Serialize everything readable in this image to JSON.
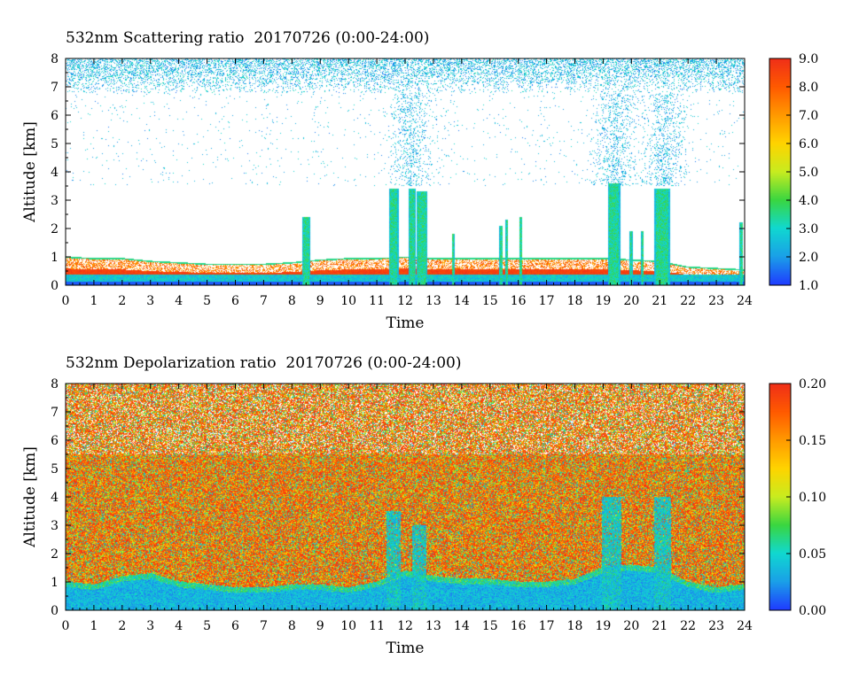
{
  "chart_data": [
    {
      "type": "heatmap",
      "title": "532nm Scattering ratio  20170726 (0:00-24:00)",
      "xlabel": "Time",
      "ylabel": "Altitude [km]",
      "xlim": [
        0,
        24
      ],
      "ylim": [
        0,
        8
      ],
      "x_ticks": [
        "0",
        "1",
        "2",
        "3",
        "4",
        "5",
        "6",
        "7",
        "8",
        "9",
        "10",
        "11",
        "12",
        "13",
        "14",
        "15",
        "16",
        "17",
        "18",
        "19",
        "20",
        "21",
        "22",
        "23",
        "24"
      ],
      "y_ticks": [
        "0",
        "1",
        "2",
        "3",
        "4",
        "5",
        "6",
        "7",
        "8"
      ],
      "colorbar": {
        "range": [
          1.0,
          9.0
        ],
        "tick_labels": [
          "1.0",
          "2.0",
          "3.0",
          "4.0",
          "5.0",
          "6.0",
          "7.0",
          "8.0",
          "9.0"
        ],
        "colors": [
          "#1f3cff",
          "#1aa0e8",
          "#10d8d0",
          "#3ad640",
          "#c8ec20",
          "#ffd400",
          "#ff9a00",
          "#ff5a00",
          "#f03018"
        ]
      },
      "features": {
        "surface_layer_top_km": 0.35,
        "boundary_layer_top_km": [
          0.95,
          0.9,
          0.9,
          0.8,
          0.75,
          0.7,
          0.7,
          0.7,
          0.75,
          0.85,
          0.9,
          0.9,
          0.95,
          0.9,
          0.9,
          0.9,
          0.9,
          0.9,
          0.9,
          0.9,
          0.85,
          0.8,
          0.6,
          0.55,
          0.5
        ],
        "cloud_columns": [
          {
            "time": 8.5,
            "top_km": 2.4,
            "width_h": 0.3
          },
          {
            "time": 11.6,
            "top_km": 3.4,
            "width_h": 0.35
          },
          {
            "time": 12.25,
            "top_km": 3.4,
            "width_h": 0.25
          },
          {
            "time": 12.6,
            "top_km": 3.3,
            "width_h": 0.4
          },
          {
            "time": 13.7,
            "top_km": 1.8,
            "width_h": 0.1
          },
          {
            "time": 15.4,
            "top_km": 2.1,
            "width_h": 0.12
          },
          {
            "time": 15.6,
            "top_km": 2.3,
            "width_h": 0.1
          },
          {
            "time": 16.1,
            "top_km": 2.4,
            "width_h": 0.1
          },
          {
            "time": 19.4,
            "top_km": 3.6,
            "width_h": 0.45
          },
          {
            "time": 20.0,
            "top_km": 1.9,
            "width_h": 0.1
          },
          {
            "time": 20.4,
            "top_km": 1.9,
            "width_h": 0.1
          },
          {
            "time": 21.1,
            "top_km": 3.4,
            "width_h": 0.55
          },
          {
            "time": 23.9,
            "top_km": 2.2,
            "width_h": 0.12
          }
        ],
        "high_level_noise_band_km": [
          6.8,
          8.0
        ]
      }
    },
    {
      "type": "heatmap",
      "title": "532nm Depolarization ratio  20170726 (0:00-24:00)",
      "xlabel": "Time",
      "ylabel": "Altitude [km]",
      "xlim": [
        0,
        24
      ],
      "ylim": [
        0,
        8
      ],
      "x_ticks": [
        "0",
        "1",
        "2",
        "3",
        "4",
        "5",
        "6",
        "7",
        "8",
        "9",
        "10",
        "11",
        "12",
        "13",
        "14",
        "15",
        "16",
        "17",
        "18",
        "19",
        "20",
        "21",
        "22",
        "23",
        "24"
      ],
      "y_ticks": [
        "0",
        "1",
        "2",
        "3",
        "4",
        "5",
        "6",
        "7",
        "8"
      ],
      "colorbar": {
        "range": [
          0.0,
          0.2
        ],
        "tick_labels": [
          "0.00",
          "0.05",
          "0.10",
          "0.15",
          "0.20"
        ],
        "colors": [
          "#1f3cff",
          "#1aa0e8",
          "#10d8d0",
          "#3ad640",
          "#c8ec20",
          "#ffd400",
          "#ff9a00",
          "#ff5a00",
          "#f03018"
        ]
      },
      "features": {
        "low_depol_layer_top_km": [
          1.0,
          0.9,
          1.2,
          1.3,
          1.0,
          0.9,
          0.8,
          0.8,
          0.9,
          0.9,
          0.8,
          1.0,
          1.4,
          1.2,
          1.1,
          1.1,
          1.0,
          1.0,
          1.1,
          1.5,
          1.6,
          1.5,
          1.0,
          0.8,
          0.9
        ],
        "cloud_columns_low_depol": [
          {
            "time": 11.6,
            "top_km": 3.5,
            "width_h": 0.5
          },
          {
            "time": 12.5,
            "top_km": 3.0,
            "width_h": 0.5
          },
          {
            "time": 19.3,
            "top_km": 4.0,
            "width_h": 0.7
          },
          {
            "time": 21.1,
            "top_km": 4.0,
            "width_h": 0.6
          }
        ]
      }
    }
  ]
}
